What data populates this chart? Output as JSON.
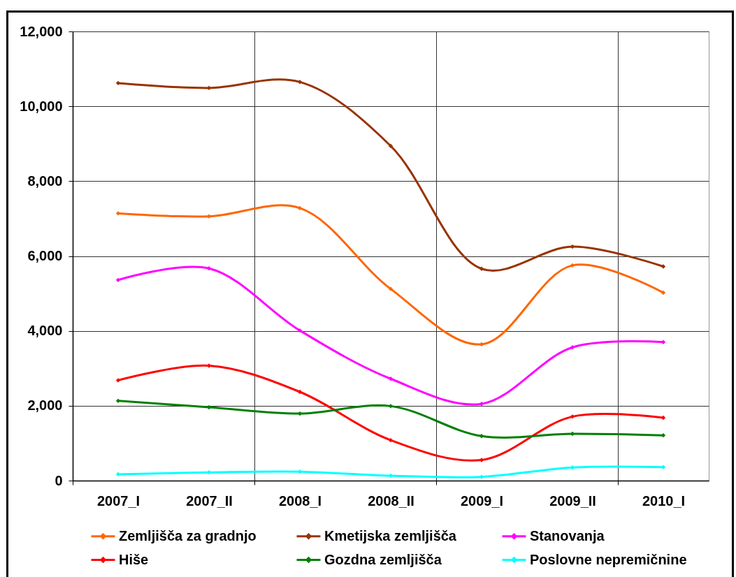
{
  "chart_data": {
    "type": "line",
    "categories": [
      "2007_I",
      "2007_II",
      "2008_I",
      "2008_II",
      "2009_I",
      "2009_II",
      "2010_I"
    ],
    "series": [
      {
        "name": "Zemljišča za gradnjo",
        "color": "#ff6600",
        "values": [
          7140,
          7060,
          7280,
          5120,
          3640,
          5750,
          5020
        ]
      },
      {
        "name": "Kmetijska zemljišča",
        "color": "#993300",
        "values": [
          10620,
          10490,
          10650,
          8940,
          5660,
          6250,
          5720
        ]
      },
      {
        "name": "Stanovanja",
        "color": "#ff00ff",
        "values": [
          5360,
          5670,
          4010,
          2720,
          2050,
          3560,
          3700
        ]
      },
      {
        "name": "Hiše",
        "color": "#ff0000",
        "values": [
          2680,
          3070,
          2370,
          1080,
          550,
          1710,
          1680
        ]
      },
      {
        "name": "Gozdna zemljišča",
        "color": "#008000",
        "values": [
          2130,
          1960,
          1790,
          1990,
          1190,
          1250,
          1210
        ]
      },
      {
        "name": "Poslovne nepremičnine",
        "color": "#00ffff",
        "values": [
          170,
          220,
          240,
          130,
          100,
          350,
          360
        ]
      }
    ],
    "ylim": [
      0,
      12000
    ],
    "yticks": [
      0,
      {
        "value": 2000,
        "label": "2,000"
      },
      {
        "value": 4000,
        "label": "4,000"
      },
      {
        "value": 6000,
        "label": "6,000"
      },
      {
        "value": 8000,
        "label": "8,000"
      },
      {
        "value": 10000,
        "label": "10,000"
      },
      {
        "value": 12000,
        "label": "12,000"
      }
    ],
    "grid": true,
    "legend": "bottom",
    "marker": "diamond",
    "line_style": "solid"
  }
}
